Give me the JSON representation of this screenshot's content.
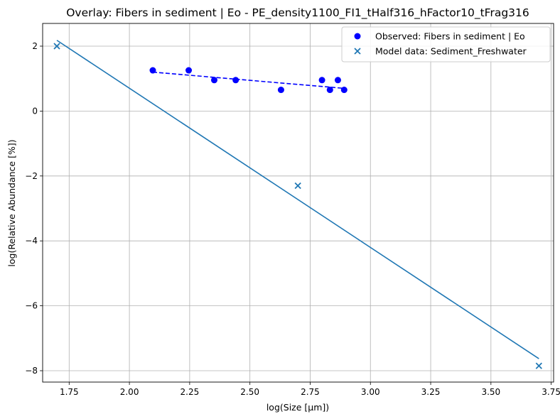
{
  "chart_data": {
    "type": "scatter",
    "title": "Overlay: Fibers in sediment | Eo - PE_density1100_FI1_tHalf316_hFactor10_tFrag316",
    "xlabel": "log(Size [µm])",
    "ylabel": "log(Relative Abundance [%])",
    "xlim": [
      1.64,
      3.76
    ],
    "ylim": [
      -8.35,
      2.7
    ],
    "xticks": [
      1.75,
      2.0,
      2.25,
      2.5,
      2.75,
      3.0,
      3.25,
      3.5,
      3.75
    ],
    "xtick_labels": [
      "1.75",
      "2.00",
      "2.25",
      "2.50",
      "2.75",
      "3.00",
      "3.25",
      "3.50",
      "3.75"
    ],
    "yticks": [
      2,
      0,
      -2,
      -4,
      -6,
      -8
    ],
    "ytick_labels": [
      "2",
      "0",
      "−2",
      "−4",
      "−6",
      "−8"
    ],
    "grid": true,
    "legend_position": "top-right",
    "series": [
      {
        "name": "Observed: Fibers in sediment | Eo",
        "kind": "scatter",
        "marker": "circle",
        "color": "#0000ff",
        "x": [
          2.097,
          2.246,
          2.352,
          2.441,
          2.629,
          2.799,
          2.832,
          2.865,
          2.891
        ],
        "y": [
          1.255,
          1.255,
          0.954,
          0.954,
          0.653,
          0.954,
          0.653,
          0.954,
          0.653
        ]
      },
      {
        "name": "Model data: Sediment_Freshwater",
        "kind": "scatter",
        "marker": "x",
        "color": "#1f77b4",
        "x": [
          1.699,
          2.699,
          3.699
        ],
        "y": [
          2.0,
          -2.3,
          -7.85
        ]
      }
    ],
    "fit_lines": [
      {
        "style": "dashed",
        "color": "#0000ff",
        "x": [
          2.097,
          2.891
        ],
        "y": [
          1.2,
          0.7
        ]
      },
      {
        "style": "solid",
        "color": "#1f77b4",
        "x": [
          1.699,
          3.699
        ],
        "y": [
          2.18,
          -7.63
        ]
      }
    ]
  }
}
